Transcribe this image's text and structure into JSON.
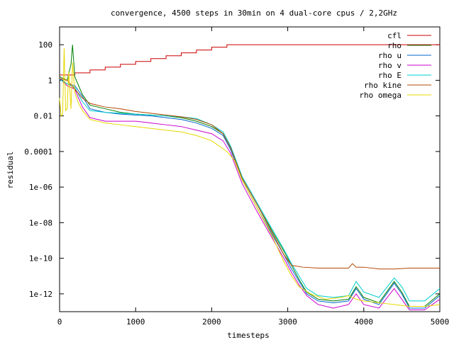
{
  "chart_data": {
    "type": "line",
    "title": "convergence, 4500 steps in 30min on 4 dual-core cpus / 2,2GHz",
    "xlabel": "timesteps",
    "ylabel": "residual",
    "xlim": [
      0,
      5000
    ],
    "ylim_log10": [
      -13,
      3
    ],
    "y_scale": "log",
    "x_ticks": [
      0,
      1000,
      2000,
      3000,
      4000,
      5000
    ],
    "x_tick_labels": [
      "0",
      "1000",
      "2000",
      "3000",
      "4000",
      "5000"
    ],
    "y_ticks_log10": [
      2,
      0,
      -2,
      -4,
      -6,
      -8,
      -10,
      -12
    ],
    "y_tick_labels": [
      "100",
      "1",
      "0.01",
      "0.0001",
      "1e-06",
      "1e-08",
      "1e-10",
      "1e-12"
    ],
    "grid": false,
    "legend_position": "top-right",
    "series": [
      {
        "name": "cfl",
        "color": "#cc0000",
        "x": [
          0,
          200,
          400,
          600,
          800,
          1000,
          1200,
          1400,
          1600,
          1800,
          2000,
          2200,
          2500,
          3000,
          4000,
          5000
        ],
        "log10_values": [
          0.3,
          0.42,
          0.58,
          0.74,
          0.9,
          1.06,
          1.22,
          1.38,
          1.54,
          1.7,
          1.86,
          2.0,
          2.0,
          2.0,
          2.0,
          1.98
        ]
      },
      {
        "name": "rho",
        "color": "#008000",
        "x": [
          0,
          100,
          150,
          170,
          200,
          300,
          400,
          600,
          800,
          1000,
          1200,
          1400,
          1600,
          1800,
          2000,
          2150,
          2250,
          2400,
          2600,
          2800,
          2950,
          3050,
          3150,
          3250,
          3400,
          3600,
          3800,
          3900,
          4000,
          4200,
          4400,
          4500,
          4600,
          4800,
          5000
        ],
        "log10_values": [
          0.2,
          0.0,
          0.9,
          2.0,
          0.2,
          -0.8,
          -1.4,
          -1.6,
          -1.8,
          -1.9,
          -1.95,
          -2.0,
          -2.1,
          -2.3,
          -2.6,
          -3.0,
          -3.8,
          -5.5,
          -7.0,
          -8.5,
          -9.6,
          -10.4,
          -11.2,
          -11.9,
          -12.3,
          -12.4,
          -12.3,
          -11.6,
          -12.2,
          -12.5,
          -11.3,
          -11.9,
          -12.7,
          -12.7,
          -12.0
        ]
      },
      {
        "name": "rho u",
        "color": "#0066cc",
        "x": [
          0,
          100,
          200,
          300,
          400,
          600,
          800,
          1000,
          1200,
          1400,
          1600,
          1800,
          2000,
          2150,
          2250,
          2400,
          2600,
          2800,
          2950,
          3050,
          3150,
          3250,
          3400,
          3600,
          3800,
          3900,
          4000,
          4200,
          4400,
          4500,
          4600,
          4800,
          5000
        ],
        "log10_values": [
          0.1,
          -0.2,
          -0.3,
          -0.9,
          -1.6,
          -1.8,
          -1.9,
          -1.95,
          -2.0,
          -2.1,
          -2.2,
          -2.4,
          -2.7,
          -3.1,
          -3.9,
          -5.6,
          -7.2,
          -8.7,
          -9.8,
          -10.6,
          -11.3,
          -12.0,
          -12.4,
          -12.5,
          -12.4,
          -11.7,
          -12.3,
          -12.6,
          -11.4,
          -12.0,
          -12.8,
          -12.8,
          -12.1
        ]
      },
      {
        "name": "rho v",
        "color": "#cc00cc",
        "x": [
          0,
          100,
          200,
          300,
          400,
          600,
          800,
          1000,
          1200,
          1400,
          1600,
          1800,
          2000,
          2150,
          2250,
          2400,
          2600,
          2800,
          2950,
          3050,
          3150,
          3250,
          3400,
          3600,
          3800,
          3900,
          4000,
          4200,
          4400,
          4500,
          4600,
          4800,
          5000
        ],
        "log10_values": [
          0.1,
          -0.3,
          -0.5,
          -1.5,
          -2.1,
          -2.3,
          -2.3,
          -2.3,
          -2.4,
          -2.5,
          -2.6,
          -2.8,
          -3.0,
          -3.4,
          -4.1,
          -5.8,
          -7.4,
          -8.9,
          -10.0,
          -10.8,
          -11.5,
          -12.1,
          -12.6,
          -12.8,
          -12.6,
          -12.0,
          -12.6,
          -12.8,
          -11.7,
          -12.3,
          -12.9,
          -12.9,
          -12.3
        ]
      },
      {
        "name": "rho E",
        "color": "#00cccc",
        "x": [
          0,
          100,
          200,
          300,
          400,
          600,
          800,
          1000,
          1200,
          1400,
          1600,
          1800,
          2000,
          2150,
          2250,
          2400,
          2600,
          2800,
          2950,
          3050,
          3150,
          3250,
          3400,
          3600,
          3800,
          3900,
          4000,
          4200,
          4400,
          4500,
          4600,
          4800,
          5000
        ],
        "log10_values": [
          0.05,
          -0.2,
          -0.4,
          -1.2,
          -1.7,
          -1.8,
          -1.85,
          -1.9,
          -1.95,
          -2.0,
          -2.05,
          -2.15,
          -2.5,
          -2.9,
          -3.7,
          -5.4,
          -6.9,
          -8.4,
          -9.5,
          -10.3,
          -11.0,
          -11.7,
          -12.1,
          -12.2,
          -12.1,
          -11.3,
          -11.9,
          -12.2,
          -11.1,
          -11.6,
          -12.4,
          -12.4,
          -11.7
        ]
      },
      {
        "name": "rho kine",
        "color": "#b34700",
        "x": [
          0,
          100,
          200,
          300,
          400,
          600,
          800,
          1000,
          1200,
          1400,
          1600,
          1800,
          2000,
          2150,
          2250,
          2400,
          2600,
          2800,
          2950,
          3050,
          3200,
          3400,
          3600,
          3800,
          3850,
          3900,
          4000,
          4200,
          4400,
          4600,
          5000
        ],
        "log10_values": [
          0.1,
          0.0,
          -0.5,
          -1.0,
          -1.3,
          -1.5,
          -1.6,
          -1.75,
          -1.85,
          -1.95,
          -2.05,
          -2.2,
          -2.5,
          -3.0,
          -3.8,
          -5.5,
          -7.0,
          -8.6,
          -9.8,
          -10.4,
          -10.5,
          -10.55,
          -10.55,
          -10.55,
          -10.3,
          -10.5,
          -10.5,
          -10.6,
          -10.6,
          -10.55,
          -10.55
        ]
      },
      {
        "name": "rho omega",
        "color": "#e6d800",
        "x": [
          0,
          20,
          40,
          60,
          80,
          100,
          120,
          150,
          170,
          200,
          250,
          300,
          400,
          600,
          800,
          1000,
          1200,
          1400,
          1600,
          1800,
          2000,
          2100,
          2200,
          2300,
          2400,
          2600,
          2800,
          2950,
          3050,
          3150,
          3300,
          3500,
          3700,
          3800,
          3900,
          4000,
          4200,
          4400,
          4600,
          4800,
          5000
        ],
        "log10_values": [
          -1.0,
          -2.0,
          -1.9,
          1.8,
          -1.7,
          -1.6,
          0.5,
          -1.6,
          1.0,
          -0.7,
          -1.3,
          -1.7,
          -2.2,
          -2.4,
          -2.5,
          -2.6,
          -2.7,
          -2.8,
          -2.9,
          -3.1,
          -3.4,
          -3.7,
          -4.0,
          -4.5,
          -5.6,
          -7.2,
          -8.8,
          -10.2,
          -11.0,
          -11.6,
          -12.0,
          -12.3,
          -12.2,
          -12.1,
          -12.3,
          -12.4,
          -12.5,
          -12.6,
          -12.7,
          -12.7,
          -12.6
        ]
      }
    ]
  }
}
